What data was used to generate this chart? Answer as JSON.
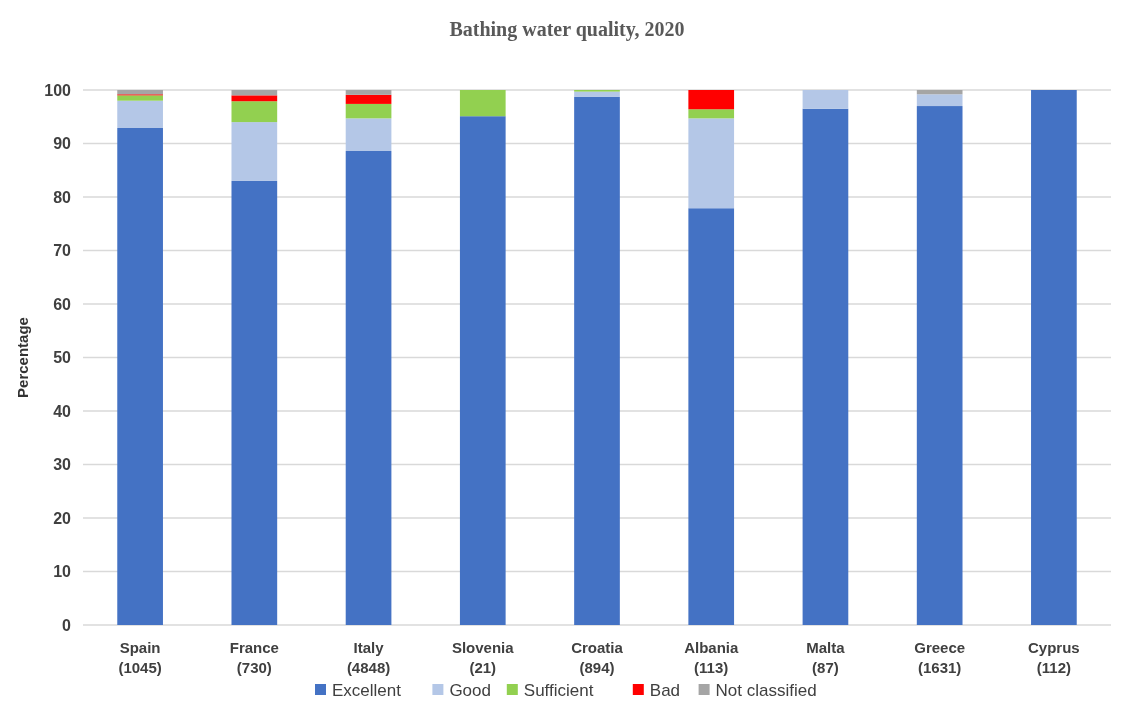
{
  "chart_data": {
    "type": "bar",
    "stacked": true,
    "title": "Bathing water quality, 2020",
    "ylabel": "Percentage",
    "categories": [
      "Spain\n(1045)",
      "France\n(730)",
      "Italy\n(4848)",
      "Slovenia\n(21)",
      "Croatia\n(894)",
      "Albania\n(113)",
      "Malta\n(87)",
      "Greece\n(1631)",
      "Cyprus\n(112)"
    ],
    "series": [
      {
        "name": "Excellent",
        "color": "#4472c4",
        "values": [
          92.9,
          83.0,
          88.6,
          95.1,
          98.7,
          77.9,
          96.5,
          97.0,
          100
        ]
      },
      {
        "name": "Good",
        "color": "#b4c7e7",
        "values": [
          5.1,
          11.0,
          6.1,
          0,
          1.0,
          16.8,
          3.5,
          2.2,
          0
        ]
      },
      {
        "name": "Sufficient",
        "color": "#92d050",
        "values": [
          1.0,
          3.9,
          2.7,
          4.9,
          0.3,
          1.7,
          0,
          0,
          0
        ]
      },
      {
        "name": "Bad",
        "color": "#ff0000",
        "values": [
          0.2,
          1.1,
          1.7,
          0,
          0,
          3.6,
          0,
          0,
          0
        ]
      },
      {
        "name": "Not classified",
        "color": "#a5a5a5",
        "values": [
          0.8,
          1.0,
          0.9,
          0,
          0,
          0,
          0,
          0.8,
          0
        ]
      }
    ],
    "ylim": [
      0,
      100
    ],
    "yticks": [
      0,
      10,
      20,
      30,
      40,
      50,
      60,
      70,
      80,
      90,
      100
    ],
    "grid": "y",
    "legend": "bottom"
  }
}
